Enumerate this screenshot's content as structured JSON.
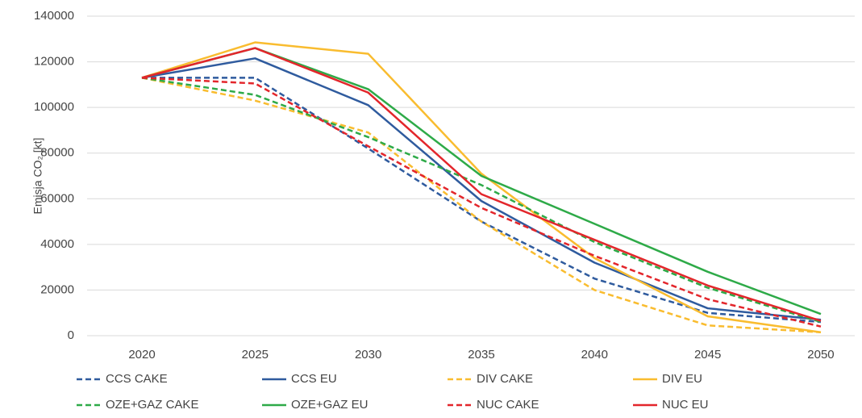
{
  "chart_data": {
    "type": "line",
    "y_label": "Emisja CO₂ [kt]",
    "categories": [
      "2020",
      "2025",
      "2030",
      "2035",
      "2040",
      "2045",
      "2050"
    ],
    "series": [
      {
        "name": "CCS CAKE",
        "color": "#2f5b9e",
        "dashed": true,
        "values": [
          113000,
          113000,
          82000,
          50000,
          25000,
          10000,
          6000
        ]
      },
      {
        "name": "CCS EU",
        "color": "#2f5b9e",
        "dashed": false,
        "values": [
          113000,
          121500,
          101000,
          59000,
          32000,
          12000,
          7000
        ]
      },
      {
        "name": "DIV CAKE",
        "color": "#f9bc2f",
        "dashed": true,
        "values": [
          113000,
          103000,
          89000,
          50000,
          20000,
          4500,
          1500
        ]
      },
      {
        "name": "DIV EU",
        "color": "#f9bc2f",
        "dashed": false,
        "values": [
          113000,
          128500,
          123500,
          71000,
          34000,
          8500,
          1500
        ]
      },
      {
        "name": "OZE+GAZ CAKE",
        "color": "#2eaa48",
        "dashed": true,
        "values": [
          113000,
          105500,
          87000,
          66000,
          41000,
          21000,
          6000
        ]
      },
      {
        "name": "OZE+GAZ EU",
        "color": "#2eaa48",
        "dashed": false,
        "values": [
          113000,
          126000,
          108000,
          70000,
          49000,
          28000,
          9500
        ]
      },
      {
        "name": "NUC CAKE",
        "color": "#e3262b",
        "dashed": true,
        "values": [
          113000,
          110500,
          83000,
          56000,
          35000,
          16000,
          4000
        ]
      },
      {
        "name": "NUC EU",
        "color": "#e3262b",
        "dashed": false,
        "values": [
          113000,
          126000,
          106500,
          62000,
          42000,
          22000,
          6500
        ]
      }
    ],
    "ylim": [
      0,
      140000
    ],
    "yticks": [
      0,
      20000,
      40000,
      60000,
      80000,
      100000,
      120000,
      140000
    ],
    "grid": true,
    "legend": "bottom"
  }
}
